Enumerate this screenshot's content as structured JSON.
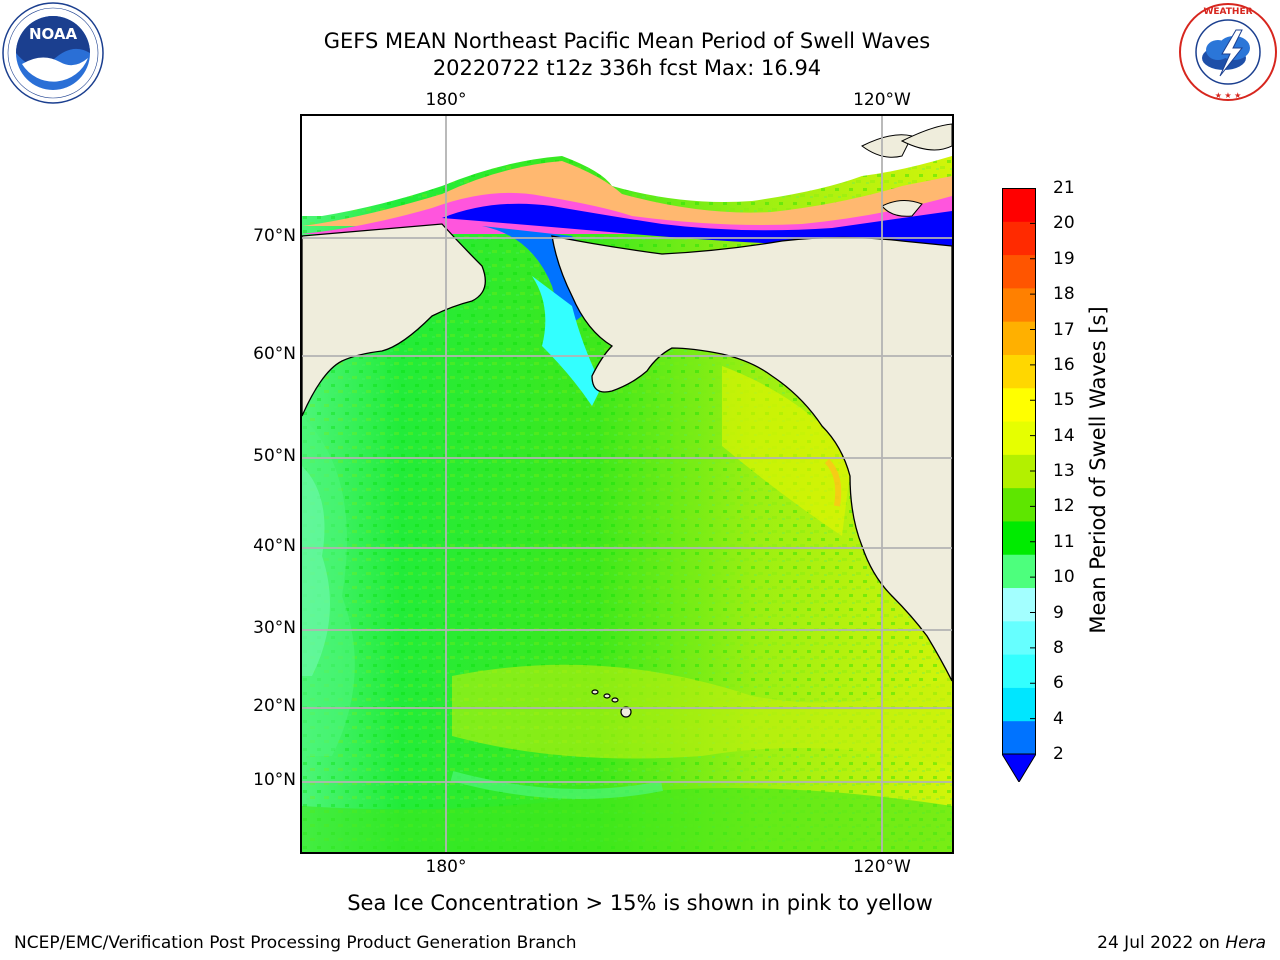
{
  "header": {
    "title": "GEFS MEAN Northeast Pacific Mean Period of Swell Waves",
    "subtitle": "20220722 t12z 336h fcst   Max: 16.94"
  },
  "logos": {
    "left": {
      "name": "NOAA",
      "ring_text": "NATIONAL OCEANIC AND ATMOSPHERIC ADMINISTRATION · U.S. DEPARTMENT OF COMMERCE"
    },
    "right": {
      "ring_text": "NATIONAL WEATHER SERVICE"
    }
  },
  "map": {
    "lon_labels_top": [
      "180°",
      "120°W"
    ],
    "lon_labels_bottom": [
      "180°",
      "120°W"
    ],
    "lat_labels": [
      "70°N",
      "60°N",
      "50°N",
      "40°N",
      "30°N",
      "20°N",
      "10°N"
    ],
    "land_color": "#efeddc",
    "grid_color": "#b3b3b3"
  },
  "colorbar": {
    "label": "Mean Period of Swell Waves [s]",
    "ticks": [
      "21",
      "20",
      "19",
      "18",
      "17",
      "16",
      "15",
      "14",
      "13",
      "12",
      "11",
      "10",
      "9",
      "8",
      "6",
      "4",
      "2"
    ],
    "colors": [
      "#0000ff",
      "#0073ff",
      "#00e6ff",
      "#33ffff",
      "#66ffff",
      "#a3ffff",
      "#4dff7d",
      "#00eb00",
      "#5ee600",
      "#b3f000",
      "#e6ff00",
      "#ffff00",
      "#ffd700",
      "#ffb000",
      "#ff8000",
      "#ff5500",
      "#ff2a00",
      "#ff0000"
    ]
  },
  "annotation": "Sea Ice Concentration > 15% is shown in pink to yellow",
  "footer": {
    "left": "NCEP/EMC/Verification Post Processing Product Generation Branch",
    "right_prefix": "24 Jul 2022 on ",
    "right_machine": "Hera"
  }
}
